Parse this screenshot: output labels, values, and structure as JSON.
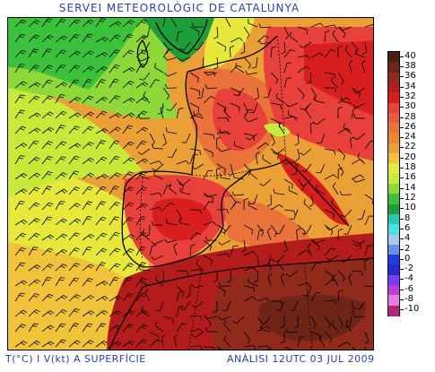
{
  "title": "SERVEI METEOROLÒGIC DE CATALUNYA",
  "footer": {
    "left": "T(°C) I V(kt) A SUPERFÍCIE",
    "right": "ANÀLISI 12UTC 03 JUL 2009"
  },
  "legend": {
    "unit": "°C",
    "entries": [
      {
        "label": "40",
        "color": "#4a1f12"
      },
      {
        "label": "38",
        "color": "#6e2416"
      },
      {
        "label": "36",
        "color": "#8f2a1d"
      },
      {
        "label": "34",
        "color": "#b41c1c"
      },
      {
        "label": "32",
        "color": "#d81e1e"
      },
      {
        "label": "30",
        "color": "#e8403a"
      },
      {
        "label": "28",
        "color": "#ea5a3c"
      },
      {
        "label": "26",
        "color": "#e9733a"
      },
      {
        "label": "24",
        "color": "#e8892f"
      },
      {
        "label": "22",
        "color": "#eaa036"
      },
      {
        "label": "20",
        "color": "#f0c33b"
      },
      {
        "label": "18",
        "color": "#e8e83c"
      },
      {
        "label": "16",
        "color": "#c7ea3a"
      },
      {
        "label": "14",
        "color": "#8ed83a"
      },
      {
        "label": "12",
        "color": "#3cc23a"
      },
      {
        "label": "10",
        "color": "#1e9e3a"
      },
      {
        "label": "8",
        "color": "#2ec8b0"
      },
      {
        "label": "6",
        "color": "#46e0e8"
      },
      {
        "label": "4",
        "color": "#a8c8f0"
      },
      {
        "label": "2",
        "color": "#6c8ee6"
      },
      {
        "label": "0",
        "color": "#1e3ee0"
      },
      {
        "label": "-2",
        "color": "#2a2ad0"
      },
      {
        "label": "-4",
        "color": "#7a3cf0"
      },
      {
        "label": "-6",
        "color": "#c03cd8"
      },
      {
        "label": "-8",
        "color": "#e87ae8"
      },
      {
        "label": "-10",
        "color": "#b8247a"
      }
    ]
  }
}
